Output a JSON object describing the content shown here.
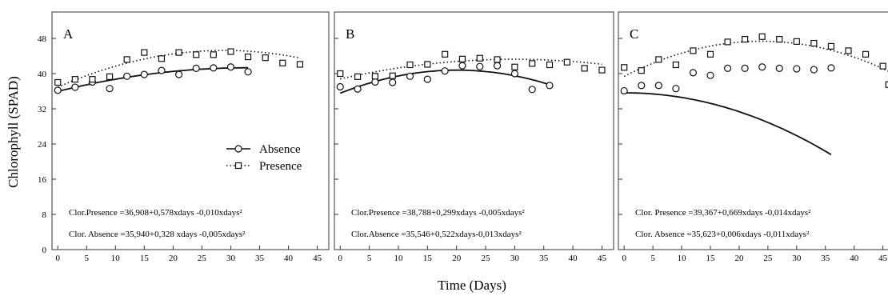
{
  "figure": {
    "ylabel": "Chlorophyll (SPAD)",
    "xlabel": "Time (Days)"
  },
  "colors": {
    "absence": "#111111",
    "presence": "#111111",
    "frame": "#333333"
  },
  "chart_data": [
    {
      "type": "scatter",
      "panel": "A",
      "xlim": [
        -1,
        47
      ],
      "ylim": [
        0,
        54
      ],
      "xticks": [
        0,
        5,
        10,
        15,
        20,
        25,
        30,
        35,
        40,
        45
      ],
      "yticks": [
        0,
        8,
        16,
        24,
        32,
        40,
        48
      ],
      "legend_placement": "center-right",
      "series": [
        {
          "name": "Absence",
          "marker": "circle",
          "line": "solid",
          "x": [
            0,
            3,
            6,
            9,
            12,
            15,
            18,
            21,
            24,
            27,
            30,
            33
          ],
          "y": [
            36.2,
            36.9,
            38.1,
            36.6,
            39.4,
            39.8,
            40.7,
            39.8,
            41.2,
            41.3,
            41.5,
            40.4
          ],
          "fit": [
            35.94,
            0.328,
            -0.005
          ]
        },
        {
          "name": "Presence",
          "marker": "square",
          "line": "dotted",
          "x": [
            0,
            3,
            6,
            9,
            12,
            15,
            18,
            21,
            24,
            27,
            30,
            33,
            36,
            39,
            42
          ],
          "y": [
            38,
            38.7,
            38.7,
            39.3,
            43.2,
            44.8,
            43.4,
            44.8,
            44.3,
            44.3,
            45,
            43.8,
            43.6,
            42.4,
            42.1
          ],
          "fit": [
            36.908,
            0.578,
            -0.01
          ]
        }
      ],
      "equations": {
        "presence": "Clor.Presence =36,908+0,578xdays -0,010xdays²",
        "absence": "Clor. Absence =35,940+0,328 xdays -0,005xdays²"
      }
    },
    {
      "type": "scatter",
      "panel": "B",
      "xlim": [
        -1,
        47
      ],
      "ylim": [
        0,
        54
      ],
      "xticks": [
        0,
        5,
        10,
        15,
        20,
        25,
        30,
        35,
        40,
        45
      ],
      "yticks": [
        0,
        8,
        16,
        24,
        32,
        40,
        48
      ],
      "series": [
        {
          "name": "Absence",
          "marker": "circle",
          "line": "solid",
          "x": [
            0,
            3,
            6,
            9,
            12,
            15,
            18,
            21,
            24,
            27,
            30,
            33,
            36
          ],
          "y": [
            37,
            36.5,
            38.1,
            38,
            39.4,
            38.7,
            40.6,
            41.8,
            41.6,
            41.8,
            40,
            36.4,
            37.3
          ],
          "fit": [
            35.546,
            0.522,
            -0.013
          ]
        },
        {
          "name": "Presence",
          "marker": "square",
          "line": "dotted",
          "x": [
            0,
            3,
            6,
            9,
            12,
            15,
            18,
            21,
            24,
            27,
            30,
            33,
            36,
            39,
            42,
            45
          ],
          "y": [
            40,
            39.3,
            39.4,
            39.5,
            42,
            42.1,
            44.4,
            43.3,
            43.5,
            43.2,
            41.5,
            42.3,
            42,
            42.6,
            41.2,
            40.8
          ],
          "fit": [
            38.788,
            0.299,
            -0.005
          ]
        }
      ],
      "equations": {
        "presence": "Clor.Presence =38,788+0,299xdays -0,005xdays²",
        "absence": "Clor.Absence =35,546+0,522xdays-0,013xdays²"
      }
    },
    {
      "type": "scatter",
      "panel": "C",
      "xlim": [
        -1,
        47
      ],
      "ylim": [
        0,
        54
      ],
      "xticks": [
        0,
        5,
        10,
        15,
        20,
        25,
        30,
        35,
        40,
        45
      ],
      "yticks": [
        0,
        8,
        16,
        24,
        32,
        40,
        48
      ],
      "series": [
        {
          "name": "Absence",
          "marker": "circle",
          "line": "solid",
          "x": [
            0,
            3,
            6,
            9,
            12,
            15,
            18,
            21,
            24,
            27,
            30,
            33,
            36
          ],
          "y": [
            36.1,
            37.3,
            37.3,
            36.6,
            40.2,
            39.6,
            41.2,
            41.2,
            41.5,
            41.2,
            41.1,
            40.9,
            41.3
          ],
          "fit": [
            35.623,
            0.006,
            -0.011
          ]
        },
        {
          "name": "Presence",
          "marker": "square",
          "line": "dotted",
          "x": [
            0,
            3,
            6,
            9,
            12,
            15,
            18,
            21,
            24,
            27,
            30,
            33,
            36,
            39,
            42,
            45,
            46
          ],
          "y": [
            41.4,
            40.7,
            43.2,
            42,
            45.2,
            44.4,
            47.2,
            47.8,
            48.4,
            47.8,
            47.3,
            46.9,
            46.2,
            45.2,
            44.4,
            41.7,
            37.5
          ],
          "fit": [
            39.367,
            0.669,
            -0.014
          ]
        }
      ],
      "equations": {
        "presence": "Clor. Presence =39,367+0,669xdays -0,014xdays²",
        "absence": "Clor. Absence =35,623+0,006xdays -0,011xdays²"
      }
    }
  ]
}
